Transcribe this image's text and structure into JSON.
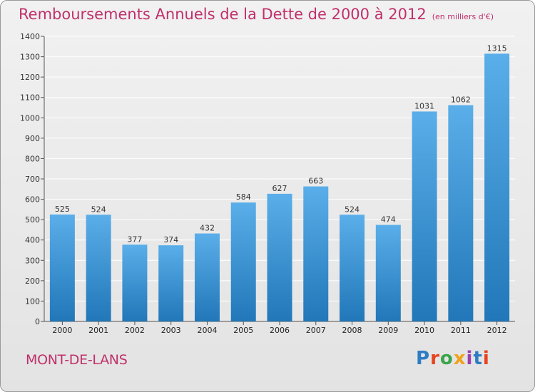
{
  "title": "Remboursements Annuels de la Dette de 2000 à 2012",
  "unit": "(en milliers d'€)",
  "town": "MONT-DE-LANS",
  "logo": {
    "text": "Proxiti",
    "colors": [
      "#2e7dc4",
      "#e8431f",
      "#3aa54a",
      "#f0a21c",
      "#9b3fb0",
      "#2e7dc4",
      "#e8431f"
    ]
  },
  "colors": {
    "bar_top": "#5aaee9",
    "bar_bottom": "#2177b8",
    "grid": "#ffffff",
    "title": "#c0306a"
  },
  "chart_data": {
    "type": "bar",
    "title": "Remboursements Annuels de la Dette de 2000 à 2012",
    "xlabel": "",
    "ylabel": "(en milliers d'€)",
    "categories": [
      "2000",
      "2001",
      "2002",
      "2003",
      "2004",
      "2005",
      "2006",
      "2007",
      "2008",
      "2009",
      "2010",
      "2011",
      "2012"
    ],
    "values": [
      525,
      524,
      377,
      374,
      432,
      584,
      627,
      663,
      524,
      474,
      1031,
      1062,
      1315
    ],
    "ylim": [
      0,
      1400
    ],
    "yticks": [
      0,
      100,
      200,
      300,
      400,
      500,
      600,
      700,
      800,
      900,
      1000,
      1100,
      1200,
      1300,
      1400
    ],
    "grid": true
  }
}
